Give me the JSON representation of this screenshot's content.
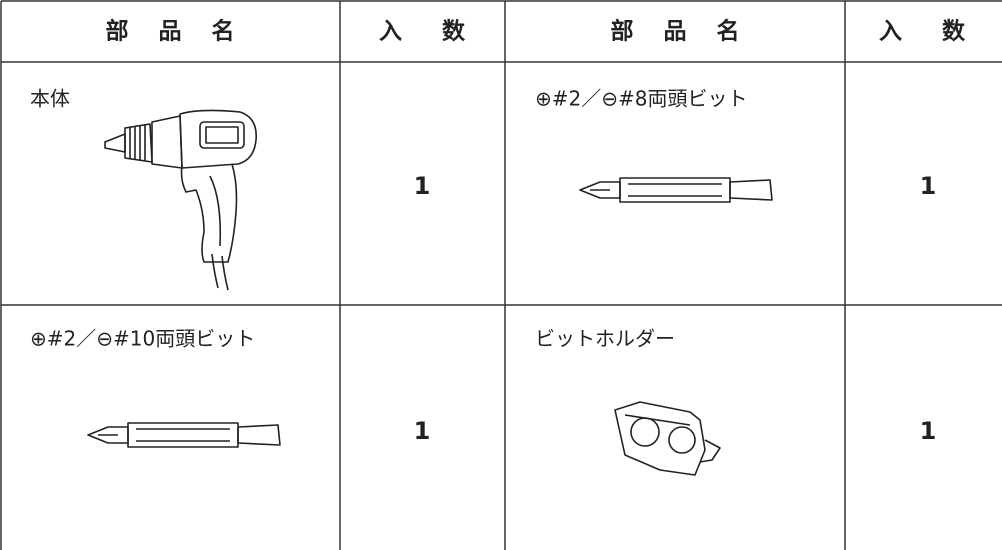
{
  "table": {
    "header": [
      "部品名",
      "入数",
      "部品名",
      "入数"
    ],
    "rows": [
      [
        "本体",
        1,
        "⊕#2／⊖#8両頭ビット",
        1
      ],
      [
        "⊕#2／⊖#10両頭ビット",
        1,
        "ビットホルダー",
        1
      ]
    ]
  }
}
